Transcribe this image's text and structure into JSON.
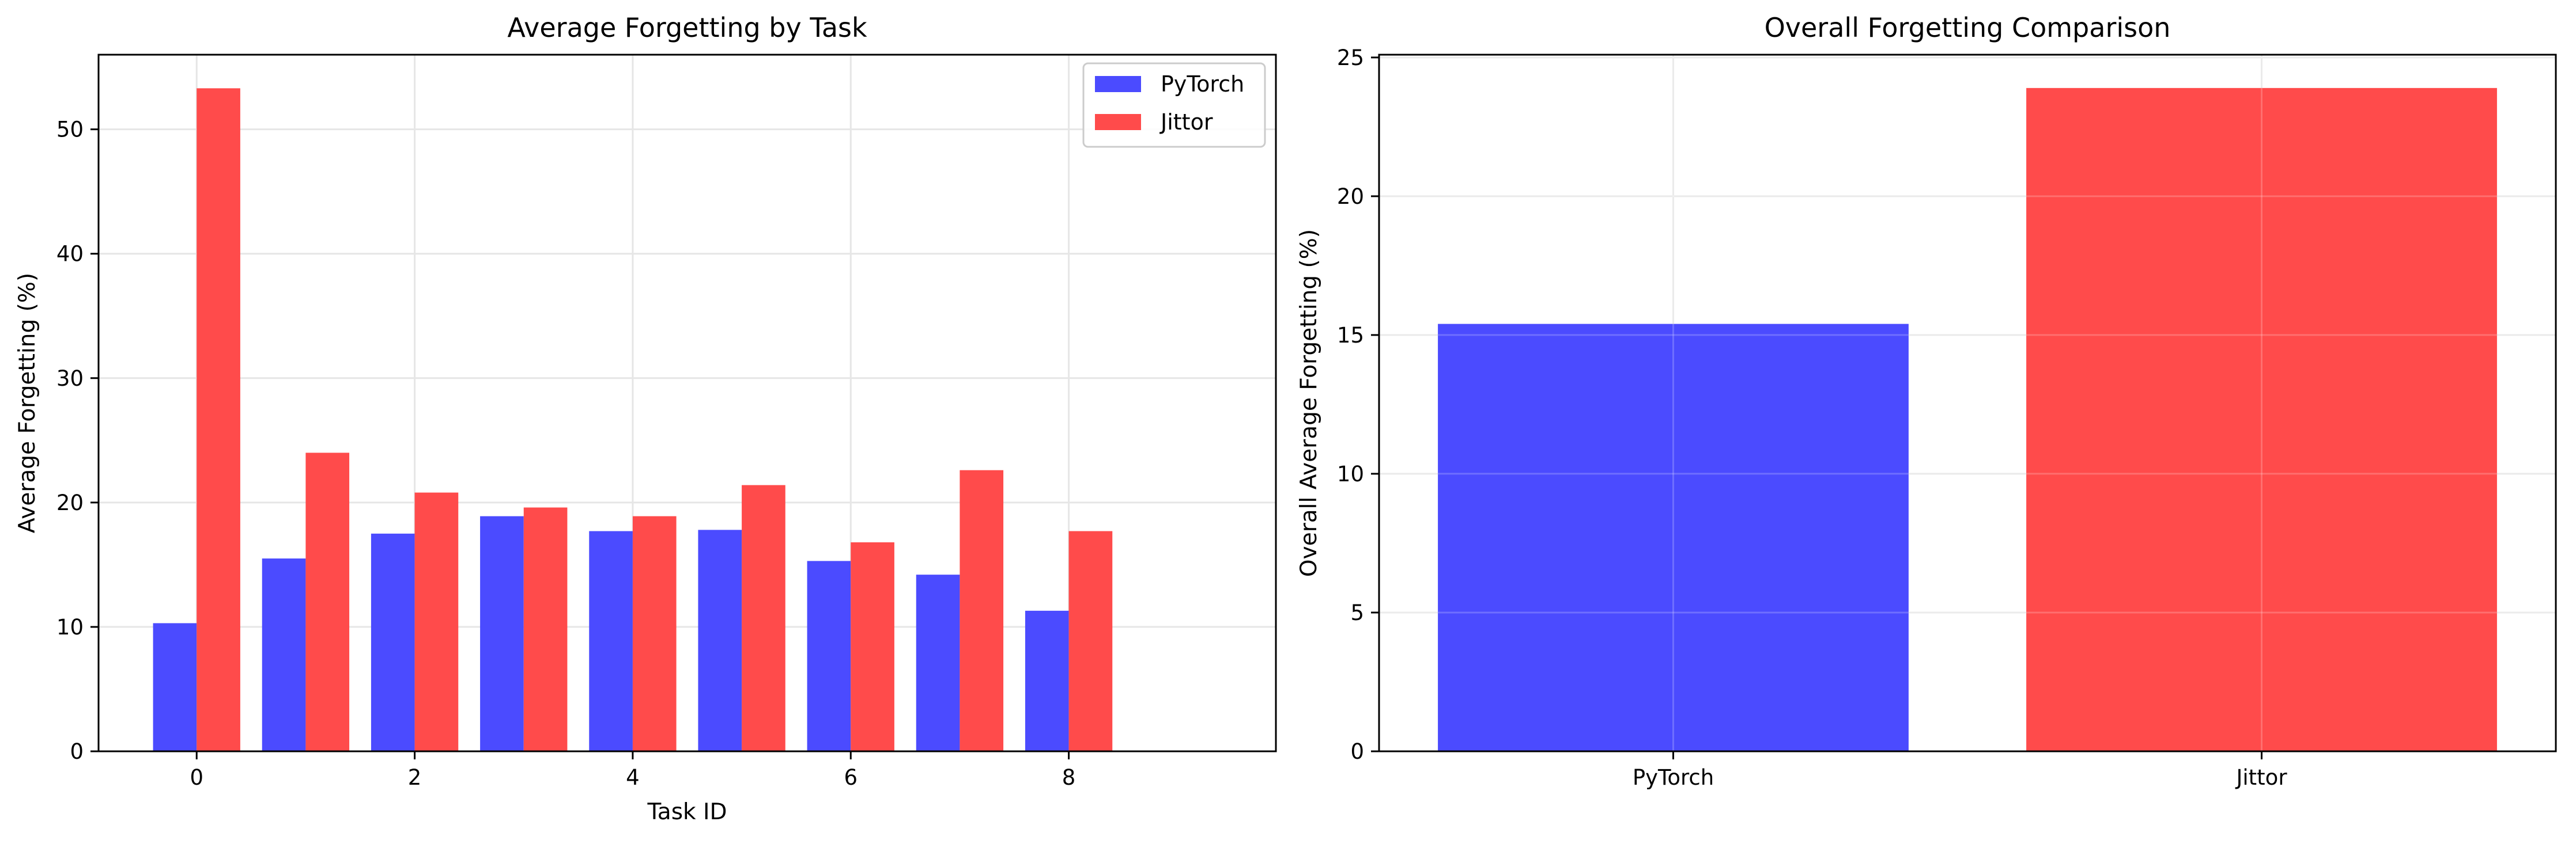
{
  "chart_data": [
    {
      "type": "bar",
      "title": "Average Forgetting by Task",
      "xlabel": "Task ID",
      "ylabel": "Average Forgetting (%)",
      "x": [
        0,
        1,
        2,
        3,
        4,
        5,
        6,
        7,
        8
      ],
      "xticks": [
        0,
        2,
        4,
        6,
        8
      ],
      "xlim": [
        -0.9,
        9.9
      ],
      "ylim": [
        0,
        56
      ],
      "yticks": [
        0,
        10,
        20,
        30,
        40,
        50
      ],
      "grid": true,
      "legend_position": "top-right",
      "series": [
        {
          "name": "PyTorch",
          "color": "#4b4bff",
          "values": [
            10.3,
            15.5,
            17.5,
            18.9,
            17.7,
            17.8,
            15.3,
            14.2,
            11.3
          ]
        },
        {
          "name": "Jittor",
          "color": "#ff4b4b",
          "values": [
            53.3,
            24.0,
            20.8,
            19.6,
            18.9,
            21.4,
            16.8,
            22.6,
            17.7
          ]
        }
      ]
    },
    {
      "type": "bar",
      "title": "Overall Forgetting Comparison",
      "xlabel": "",
      "ylabel": "Overall Average Forgetting (%)",
      "categories": [
        "PyTorch",
        "Jittor"
      ],
      "values": [
        15.4,
        23.9
      ],
      "colors": [
        "#4b4bff",
        "#ff4b4b"
      ],
      "ylim": [
        0,
        25.1
      ],
      "yticks": [
        0,
        5,
        10,
        15,
        20,
        25
      ],
      "grid": true
    }
  ]
}
